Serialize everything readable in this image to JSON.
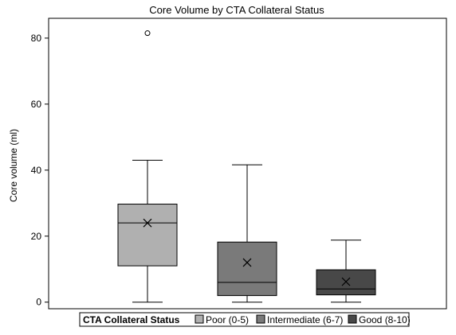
{
  "chart_data": {
    "type": "boxplot",
    "title": "Core Volume by CTA Collateral Status",
    "xlabel": "",
    "ylabel": "Core volume (ml)",
    "ylim": [
      -2,
      86
    ],
    "yticks": [
      0,
      20,
      40,
      60,
      80
    ],
    "grid": false,
    "legend": {
      "title": "CTA Collateral Status",
      "placement": "bottom"
    },
    "series": [
      {
        "name": "Poor (0-5)",
        "color": "#b0b0b0",
        "whisker_low": 0,
        "q1": 11,
        "median": 24,
        "q3": 29.7,
        "whisker_high": 43,
        "mean": 24,
        "outliers": [
          81.5
        ]
      },
      {
        "name": "Intermediate (6-7)",
        "color": "#7a7a7a",
        "whisker_low": 0,
        "q1": 2,
        "median": 6,
        "q3": 18.2,
        "whisker_high": 41.6,
        "mean": 12,
        "outliers": []
      },
      {
        "name": "Good (8-10)",
        "color": "#484848",
        "whisker_low": 0,
        "q1": 2.2,
        "median": 4,
        "q3": 9.8,
        "whisker_high": 18.8,
        "mean": 6.2,
        "outliers": []
      }
    ]
  }
}
